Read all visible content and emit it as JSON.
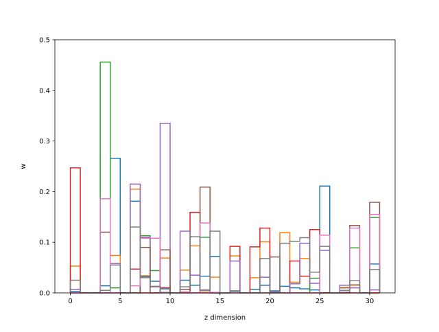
{
  "chart_data": {
    "type": "step",
    "xlabel": "z dimension",
    "ylabel": "w",
    "xlim": [
      -1.55,
      32.55
    ],
    "ylim": [
      0,
      0.5
    ],
    "xticks": [
      0,
      5,
      10,
      15,
      20,
      25,
      30
    ],
    "yticks": [
      0.0,
      0.1,
      0.2,
      0.3,
      0.4,
      0.5
    ],
    "xtick_labels": [
      "0",
      "5",
      "10",
      "15",
      "20",
      "25",
      "30"
    ],
    "ytick_labels": [
      "0.0",
      "0.1",
      "0.2",
      "0.3",
      "0.4",
      "0.5"
    ],
    "bin_edges": [
      0,
      1,
      2,
      3,
      4,
      5,
      6,
      7,
      8,
      9,
      10,
      11,
      12,
      13,
      14,
      15,
      16,
      17,
      18,
      19,
      20,
      21,
      22,
      23,
      24,
      25,
      26,
      27,
      28,
      29,
      30,
      31
    ],
    "series": [
      {
        "color": "#1f77b4",
        "values": [
          0.003,
          0,
          0,
          0.014,
          0.266,
          0,
          0.181,
          0.032,
          0.023,
          0.008,
          0,
          0.025,
          0.015,
          0.033,
          0.072,
          0,
          0.003,
          0,
          0.007,
          0.015,
          0.004,
          0.013,
          0.01,
          0.008,
          0.006,
          0.211,
          0,
          0.01,
          0.016,
          0,
          0.057
        ]
      },
      {
        "color": "#ff7f0e",
        "values": [
          0.053,
          0,
          0,
          0,
          0.074,
          0,
          0.205,
          0.034,
          0.012,
          0.069,
          0,
          0.045,
          0.093,
          0.004,
          0.031,
          0,
          0.073,
          0,
          0.03,
          0.101,
          0,
          0.119,
          0.021,
          0.068,
          0,
          0,
          0,
          0.011,
          0.015,
          0,
          0
        ]
      },
      {
        "color": "#2ca02c",
        "values": [
          0,
          0,
          0,
          0.456,
          0.01,
          0,
          0,
          0.113,
          0.044,
          0,
          0,
          0,
          0,
          0.11,
          0,
          0,
          0.004,
          0,
          0,
          0,
          0,
          0,
          0,
          0,
          0.029,
          0,
          0,
          0,
          0.089,
          0,
          0.149
        ]
      },
      {
        "color": "#d62728",
        "values": [
          0.247,
          0,
          0,
          0,
          0,
          0,
          0.047,
          0,
          0,
          0.01,
          0,
          0,
          0.159,
          0,
          0,
          0,
          0.092,
          0,
          0.091,
          0.128,
          0,
          0,
          0.063,
          0.033,
          0.125,
          0,
          0,
          0,
          0,
          0,
          0
        ]
      },
      {
        "color": "#9467bd",
        "values": [
          0.007,
          0,
          0,
          0,
          0.058,
          0,
          0.215,
          0.11,
          0.012,
          0.335,
          0,
          0.122,
          0.035,
          0.006,
          0,
          0,
          0.063,
          0,
          0,
          0.031,
          0.002,
          0,
          0.018,
          0.098,
          0.019,
          0.084,
          0,
          0.015,
          0.01,
          0,
          0.006
        ]
      },
      {
        "color": "#8c564b",
        "values": [
          0,
          0,
          0,
          0.12,
          0,
          0,
          0,
          0.09,
          0,
          0.085,
          0,
          0.007,
          0,
          0.209,
          0,
          0,
          0,
          0,
          0,
          0,
          0.071,
          0,
          0,
          0,
          0,
          0,
          0,
          0,
          0.133,
          0,
          0.179
        ]
      },
      {
        "color": "#e377c2",
        "values": [
          0,
          0,
          0,
          0.186,
          0,
          0,
          0.014,
          0.108,
          0.108,
          0,
          0,
          0.002,
          0,
          0.138,
          0.001,
          0,
          0,
          0,
          0,
          0,
          0,
          0,
          0,
          0,
          0,
          0.114,
          0,
          0.004,
          0.128,
          0,
          0.155
        ]
      },
      {
        "color": "#7f7f7f",
        "values": [
          0.025,
          0,
          0,
          0.005,
          0.055,
          0,
          0.13,
          0.03,
          0.013,
          0.001,
          0,
          0.012,
          0.111,
          0.005,
          0.122,
          0,
          0.004,
          0,
          0,
          0.068,
          0,
          0.098,
          0.102,
          0.109,
          0.041,
          0.092,
          0,
          0.005,
          0.024,
          0,
          0.046
        ]
      }
    ]
  }
}
